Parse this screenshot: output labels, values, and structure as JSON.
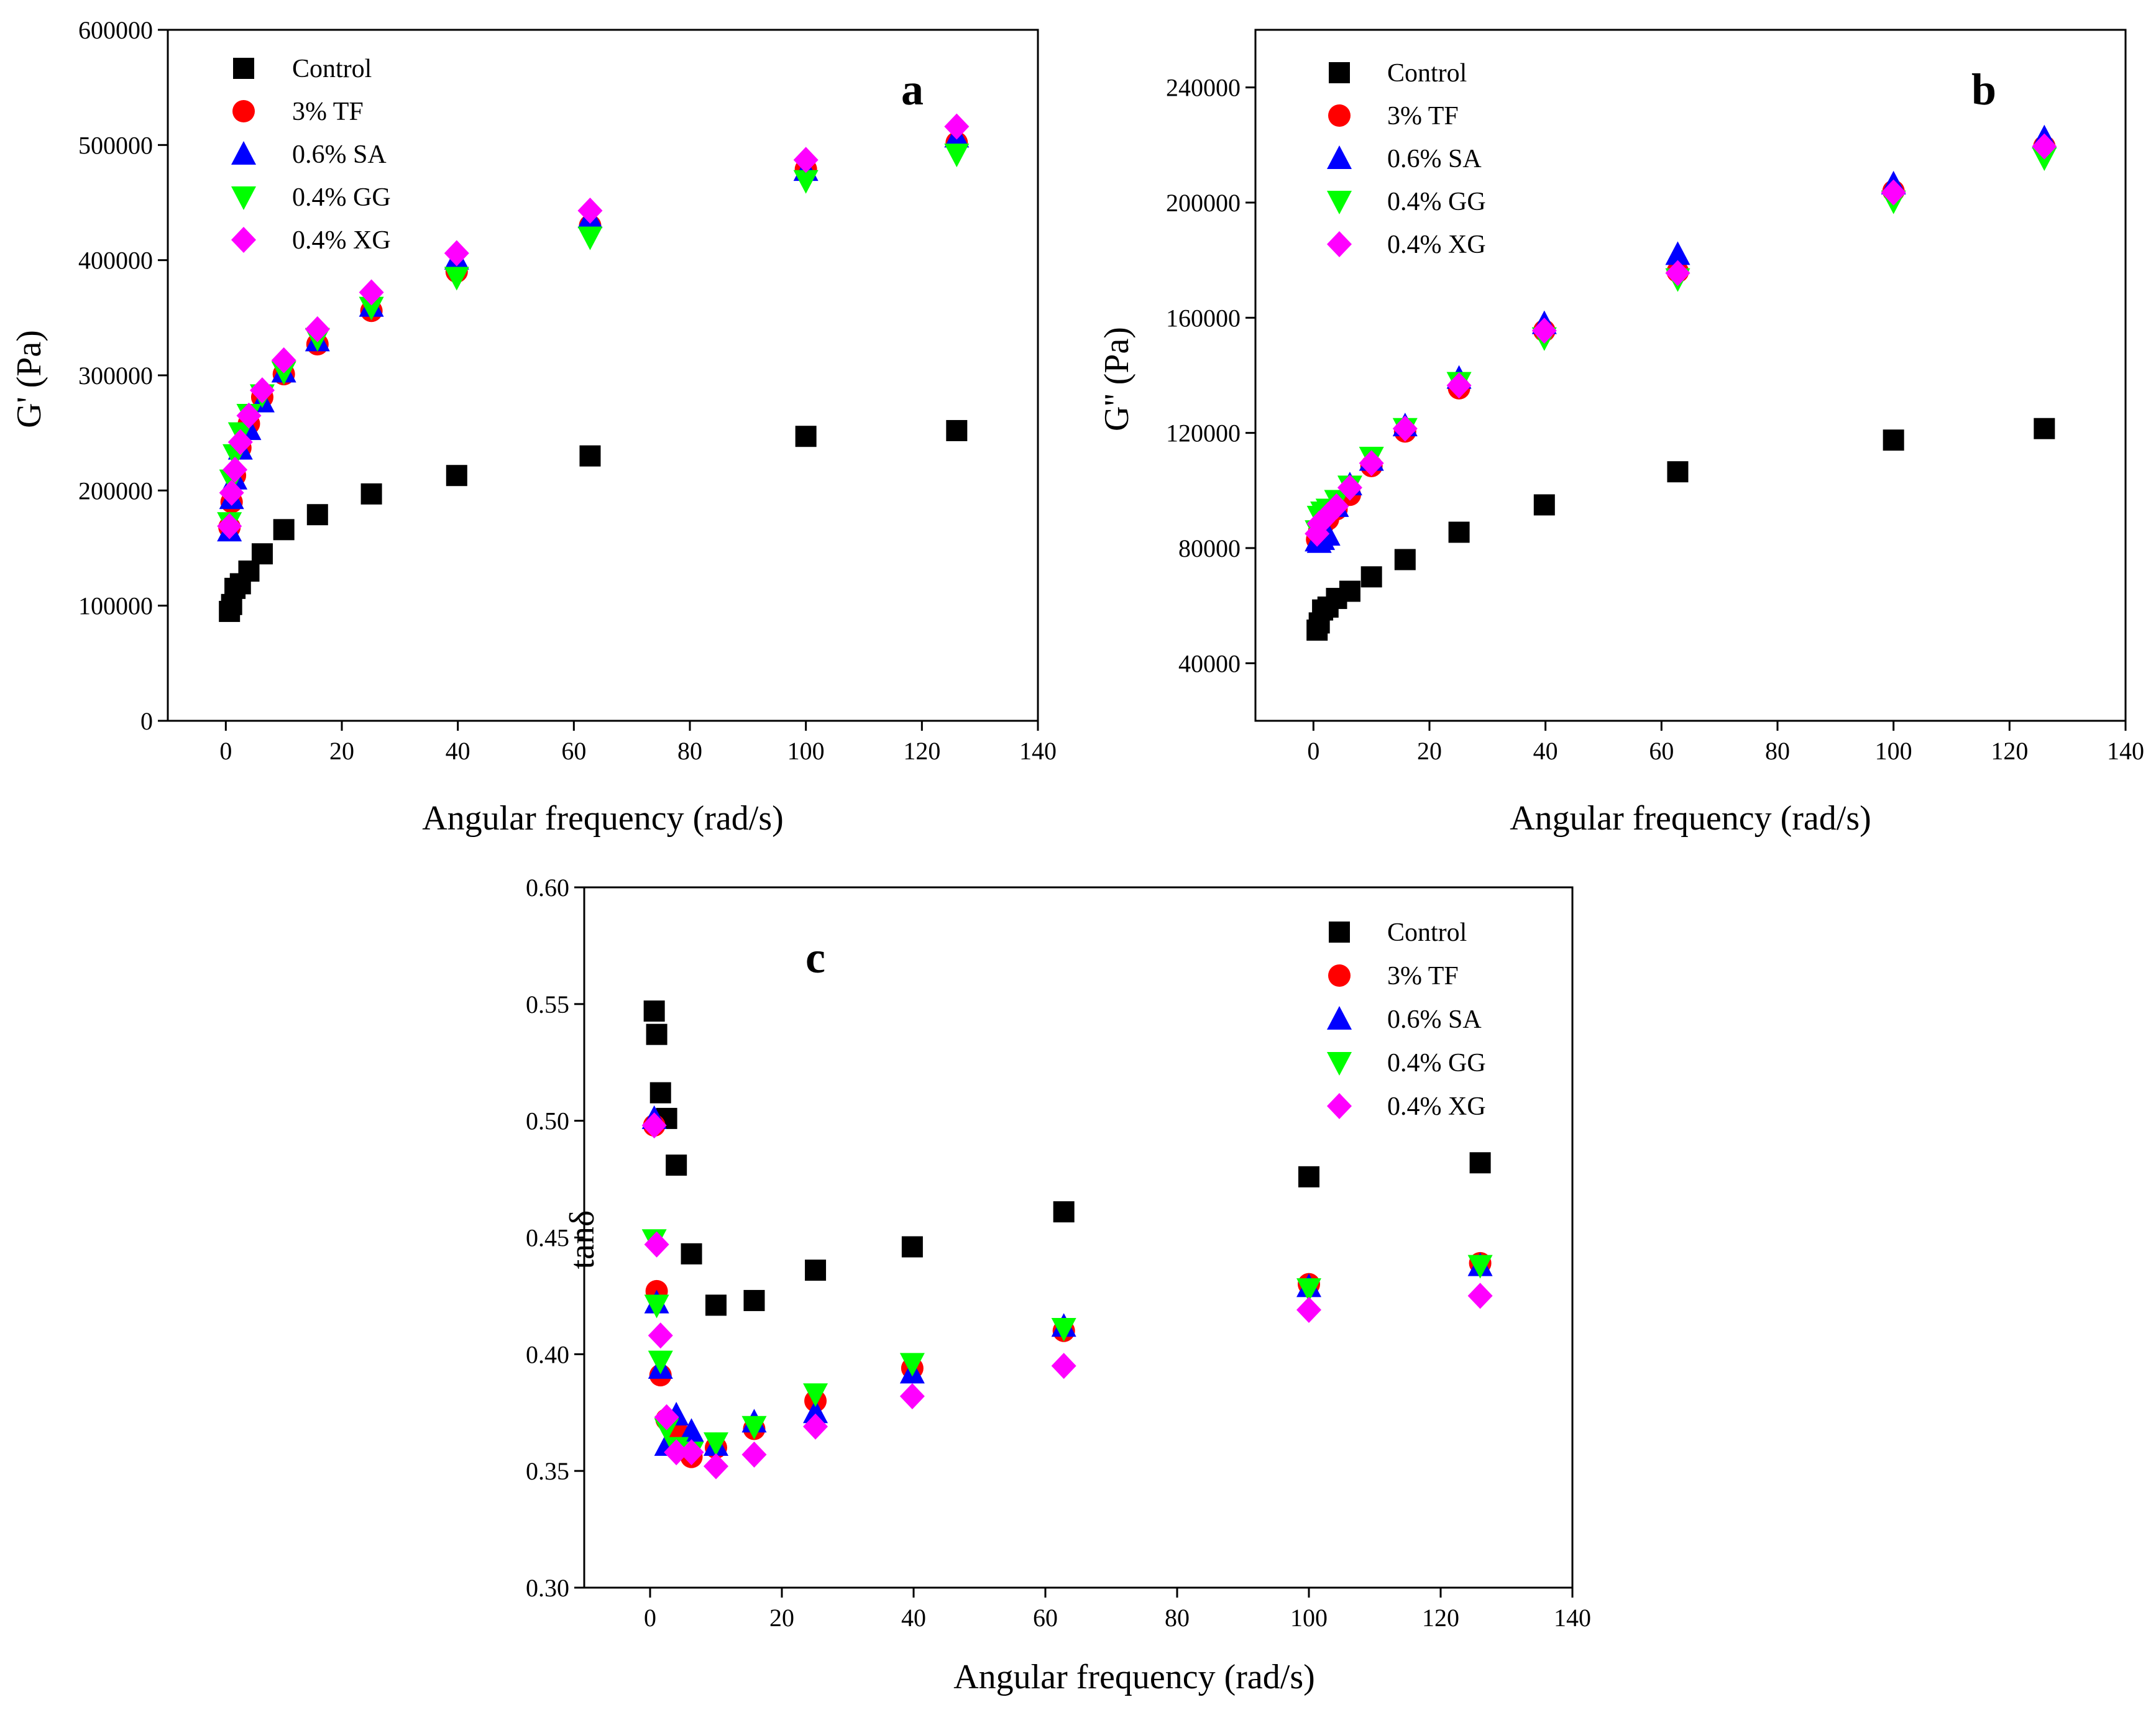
{
  "chart_data": [
    {
      "type": "scatter",
      "panel_label": "a",
      "xlabel": "Angular frequency (rad/s)",
      "ylabel": "G' (Pa)",
      "xlim": [
        -10,
        140
      ],
      "ylim": [
        0,
        600000
      ],
      "xticks": [
        0,
        20,
        40,
        60,
        80,
        100,
        120,
        140
      ],
      "yticks": [
        0,
        100000,
        200000,
        300000,
        400000,
        500000,
        600000
      ],
      "legend_position": "top-left",
      "series": [
        {
          "name": "Control",
          "marker": "square",
          "color": "#000000",
          "x": [
            0.628,
            1,
            1.58,
            2.51,
            3.98,
            6.28,
            10,
            15.8,
            25.1,
            39.8,
            62.8,
            100,
            126
          ],
          "y": [
            95000,
            101000,
            115000,
            119000,
            130000,
            145000,
            166000,
            179000,
            197000,
            213000,
            230000,
            247000,
            252000
          ]
        },
        {
          "name": "3% TF",
          "marker": "circle",
          "color": "#ff0000",
          "x": [
            0.628,
            1,
            1.58,
            2.51,
            3.98,
            6.28,
            10,
            15.8,
            25.1,
            39.8,
            62.8,
            100,
            126
          ],
          "y": [
            168000,
            190000,
            213000,
            237000,
            258000,
            281000,
            301000,
            327000,
            356000,
            390000,
            430000,
            479000,
            502000
          ]
        },
        {
          "name": "0.6% SA",
          "marker": "triangle-up",
          "color": "#0000ff",
          "x": [
            0.628,
            1,
            1.58,
            2.51,
            3.98,
            6.28,
            10,
            15.8,
            25.1,
            39.8,
            62.8,
            100,
            126
          ],
          "y": [
            165000,
            193000,
            210000,
            236000,
            253000,
            277000,
            303000,
            330000,
            360000,
            401000,
            437000,
            478000,
            507000
          ]
        },
        {
          "name": "0.4% GG",
          "marker": "triangle-down",
          "color": "#00ff00",
          "x": [
            0.628,
            1,
            1.58,
            2.51,
            3.98,
            6.28,
            10,
            15.8,
            25.1,
            39.8,
            62.8,
            100,
            126
          ],
          "y": [
            172000,
            209000,
            231000,
            250000,
            266000,
            283000,
            303000,
            332000,
            359000,
            385000,
            420000,
            469000,
            492000
          ]
        },
        {
          "name": "0.4% XG",
          "marker": "diamond",
          "color": "#ff00ff",
          "x": [
            0.628,
            1,
            1.58,
            2.51,
            3.98,
            6.28,
            10,
            15.8,
            25.1,
            39.8,
            62.8,
            100,
            126
          ],
          "y": [
            169000,
            198000,
            218000,
            242000,
            265000,
            287000,
            313000,
            340000,
            372000,
            406000,
            443000,
            487000,
            516000
          ]
        }
      ]
    },
    {
      "type": "scatter",
      "panel_label": "b",
      "xlabel": "Angular frequency (rad/s)",
      "ylabel": "G'' (Pa)",
      "xlim": [
        -10,
        140
      ],
      "ylim": [
        20000,
        260000
      ],
      "xticks": [
        0,
        20,
        40,
        60,
        80,
        100,
        120,
        140
      ],
      "yticks": [
        40000,
        80000,
        120000,
        160000,
        200000,
        240000
      ],
      "legend_position": "top-left",
      "series": [
        {
          "name": "Control",
          "marker": "square",
          "color": "#000000",
          "x": [
            0.628,
            1,
            1.58,
            2.51,
            3.98,
            6.28,
            10,
            15.8,
            25.1,
            39.8,
            62.8,
            100,
            126
          ],
          "y": [
            51500,
            54000,
            58500,
            59500,
            62500,
            65000,
            70000,
            76000,
            85500,
            95000,
            106500,
            117500,
            121500
          ]
        },
        {
          "name": "3% TF",
          "marker": "circle",
          "color": "#ff0000",
          "x": [
            0.628,
            1,
            1.58,
            2.51,
            3.98,
            6.28,
            10,
            15.8,
            25.1,
            39.8,
            62.8,
            100,
            126
          ],
          "y": [
            83000,
            86000,
            88000,
            90000,
            93500,
            98500,
            108500,
            120500,
            135500,
            155500,
            176000,
            204000,
            219500
          ]
        },
        {
          "name": "0.6% SA",
          "marker": "triangle-up",
          "color": "#0000ff",
          "x": [
            0.628,
            1,
            1.58,
            2.51,
            3.98,
            6.28,
            10,
            15.8,
            25.1,
            39.8,
            62.8,
            100,
            126
          ],
          "y": [
            82500,
            82000,
            83000,
            84500,
            94500,
            102000,
            110500,
            122500,
            139000,
            158000,
            182000,
            206500,
            222500
          ]
        },
        {
          "name": "0.4% GG",
          "marker": "triangle-down",
          "color": "#00ff00",
          "x": [
            0.628,
            1,
            1.58,
            2.51,
            3.98,
            6.28,
            10,
            15.8,
            25.1,
            39.8,
            62.8,
            100,
            126
          ],
          "y": [
            86000,
            91000,
            92500,
            93500,
            96500,
            101500,
            111500,
            121500,
            137500,
            153000,
            173500,
            200500,
            215500
          ]
        },
        {
          "name": "0.4% XG",
          "marker": "diamond",
          "color": "#ff00ff",
          "x": [
            0.628,
            1,
            1.58,
            2.51,
            3.98,
            6.28,
            10,
            15.8,
            25.1,
            39.8,
            62.8,
            100,
            126
          ],
          "y": [
            85000,
            88500,
            89500,
            91500,
            94500,
            101000,
            109500,
            121500,
            136500,
            155500,
            175500,
            203500,
            219500
          ]
        }
      ]
    },
    {
      "type": "scatter",
      "panel_label": "c",
      "xlabel": "Angular frequency (rad/s)",
      "ylabel": "tanδ",
      "xlim": [
        -10,
        140
      ],
      "ylim": [
        0.3,
        0.6
      ],
      "xticks": [
        0,
        20,
        40,
        60,
        80,
        100,
        120,
        140
      ],
      "yticks": [
        0.3,
        0.35,
        0.4,
        0.45,
        0.5,
        0.55,
        0.6
      ],
      "ytick_labels": [
        "0.30",
        "0.35",
        "0.40",
        "0.45",
        "0.50",
        "0.55",
        "0.60"
      ],
      "legend_position": "top-right",
      "series": [
        {
          "name": "Control",
          "marker": "square",
          "color": "#000000",
          "x": [
            0.628,
            1,
            1.58,
            2.51,
            3.98,
            6.28,
            10,
            15.8,
            25.1,
            39.8,
            62.8,
            100,
            126
          ],
          "y": [
            0.547,
            0.537,
            0.512,
            0.501,
            0.481,
            0.443,
            0.421,
            0.423,
            0.436,
            0.446,
            0.461,
            0.476,
            0.482
          ]
        },
        {
          "name": "3% TF",
          "marker": "circle",
          "color": "#ff0000",
          "x": [
            0.628,
            1,
            1.58,
            2.51,
            3.98,
            6.28,
            10,
            15.8,
            25.1,
            39.8,
            62.8,
            100,
            126
          ],
          "y": [
            0.498,
            0.427,
            0.391,
            0.372,
            0.368,
            0.356,
            0.36,
            0.368,
            0.38,
            0.394,
            0.41,
            0.43,
            0.439
          ]
        },
        {
          "name": "0.6% SA",
          "marker": "triangle-up",
          "color": "#0000ff",
          "x": [
            0.628,
            1,
            1.58,
            2.51,
            3.98,
            6.28,
            10,
            15.8,
            25.1,
            39.8,
            62.8,
            100,
            126
          ],
          "y": [
            0.501,
            0.422,
            0.394,
            0.361,
            0.374,
            0.367,
            0.361,
            0.371,
            0.375,
            0.392,
            0.412,
            0.429,
            0.438
          ]
        },
        {
          "name": "0.4% GG",
          "marker": "triangle-down",
          "color": "#00ff00",
          "x": [
            0.628,
            1,
            1.58,
            2.51,
            3.98,
            6.28,
            10,
            15.8,
            25.1,
            39.8,
            62.8,
            100,
            126
          ],
          "y": [
            0.449,
            0.421,
            0.397,
            0.368,
            0.36,
            0.358,
            0.362,
            0.369,
            0.383,
            0.396,
            0.411,
            0.428,
            0.438
          ]
        },
        {
          "name": "0.4% XG",
          "marker": "diamond",
          "color": "#ff00ff",
          "x": [
            0.628,
            1,
            1.58,
            2.51,
            3.98,
            6.28,
            10,
            15.8,
            25.1,
            39.8,
            62.8,
            100,
            126
          ],
          "y": [
            0.498,
            0.447,
            0.408,
            0.373,
            0.358,
            0.358,
            0.352,
            0.357,
            0.369,
            0.382,
            0.395,
            0.419,
            0.425
          ]
        }
      ]
    }
  ]
}
